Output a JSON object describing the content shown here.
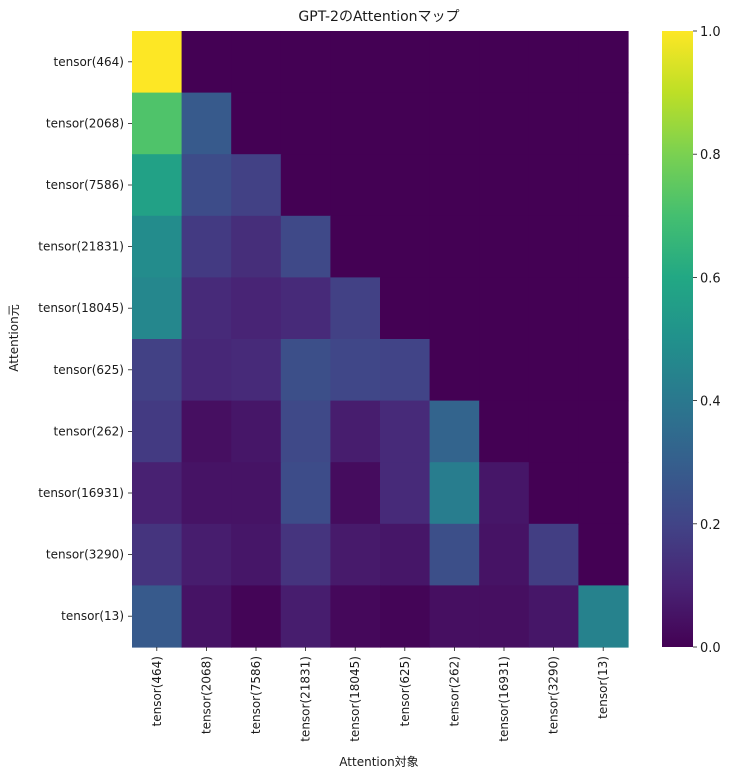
{
  "chart_data": {
    "type": "heatmap",
    "title": "GPT-2のAttentionマップ",
    "xlabel": "Attention対象",
    "ylabel": "Attention元",
    "row_labels": [
      "tensor(464)",
      "tensor(2068)",
      "tensor(7586)",
      "tensor(21831)",
      "tensor(18045)",
      "tensor(625)",
      "tensor(262)",
      "tensor(16931)",
      "tensor(3290)",
      "tensor(13)"
    ],
    "col_labels": [
      "tensor(464)",
      "tensor(2068)",
      "tensor(7586)",
      "tensor(21831)",
      "tensor(18045)",
      "tensor(625)",
      "tensor(262)",
      "tensor(16931)",
      "tensor(3290)",
      "tensor(13)"
    ],
    "values": [
      [
        1.0,
        0.0,
        0.0,
        0.0,
        0.0,
        0.0,
        0.0,
        0.0,
        0.0,
        0.0
      ],
      [
        0.72,
        0.28,
        0.0,
        0.0,
        0.0,
        0.0,
        0.0,
        0.0,
        0.0,
        0.0
      ],
      [
        0.57,
        0.23,
        0.19,
        0.0,
        0.0,
        0.0,
        0.0,
        0.0,
        0.0,
        0.0
      ],
      [
        0.48,
        0.17,
        0.13,
        0.22,
        0.0,
        0.0,
        0.0,
        0.0,
        0.0,
        0.0
      ],
      [
        0.46,
        0.12,
        0.1,
        0.12,
        0.19,
        0.0,
        0.0,
        0.0,
        0.0,
        0.0
      ],
      [
        0.19,
        0.11,
        0.12,
        0.24,
        0.21,
        0.2,
        0.0,
        0.0,
        0.0,
        0.0
      ],
      [
        0.17,
        0.04,
        0.06,
        0.22,
        0.08,
        0.12,
        0.32,
        0.0,
        0.0,
        0.0
      ],
      [
        0.09,
        0.05,
        0.05,
        0.23,
        0.03,
        0.12,
        0.42,
        0.06,
        0.0,
        0.0
      ],
      [
        0.15,
        0.08,
        0.06,
        0.15,
        0.07,
        0.06,
        0.24,
        0.05,
        0.18,
        0.0
      ],
      [
        0.28,
        0.05,
        0.01,
        0.08,
        0.02,
        0.01,
        0.04,
        0.04,
        0.06,
        0.44
      ]
    ],
    "vmin": 0.0,
    "vmax": 1.0,
    "colormap": "viridis",
    "colorbar_ticks": [
      "0.0",
      "0.2",
      "0.4",
      "0.6",
      "0.8",
      "1.0"
    ],
    "grid": false
  }
}
